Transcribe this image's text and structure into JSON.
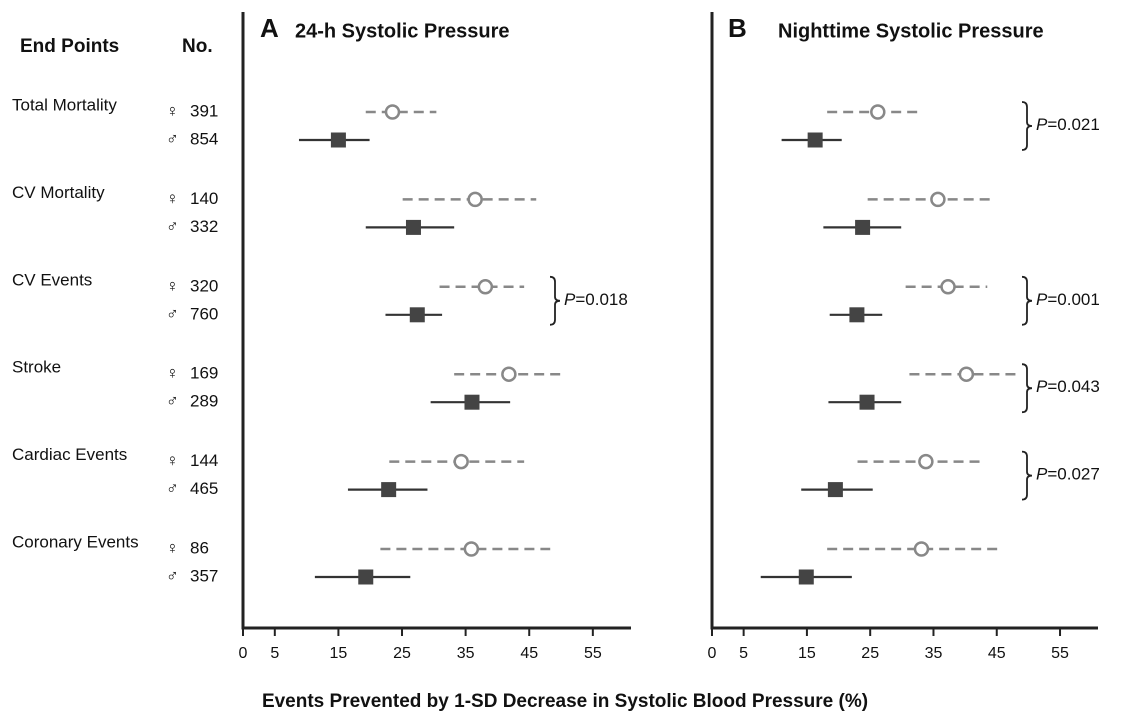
{
  "header": {
    "end_points": "End Points",
    "no": "No.",
    "female_symbol": "♀",
    "male_symbol": "♂"
  },
  "rows": [
    {
      "name": "Total Mortality",
      "female_n": 391,
      "male_n": 854
    },
    {
      "name": "CV Mortality",
      "female_n": 140,
      "male_n": 332
    },
    {
      "name": "CV Events",
      "female_n": 320,
      "male_n": 760
    },
    {
      "name": "Stroke",
      "female_n": 169,
      "male_n": 289
    },
    {
      "name": "Cardiac Events",
      "female_n": 144,
      "male_n": 465
    },
    {
      "name": "Coronary Events",
      "female_n": 86,
      "male_n": 357
    }
  ],
  "x_label": "Events Prevented by 1-SD Decrease in Systolic Blood Pressure (%)",
  "chart_data": [
    {
      "type": "forest",
      "panel": "A",
      "title": "24-h Systolic Pressure",
      "xlim": [
        0,
        61
      ],
      "xticks": [
        0,
        5,
        15,
        25,
        35,
        45,
        55
      ],
      "female": {
        "color": "#888888",
        "values": [
          23.5,
          36.5,
          38.1,
          41.8,
          34.3,
          35.9
        ],
        "lower": [
          19.3,
          25.1,
          30.9,
          33.2,
          23.0,
          21.6
        ],
        "upper": [
          30.4,
          46.1,
          44.2,
          50.0,
          44.2,
          48.3
        ]
      },
      "male": {
        "color": "#444444",
        "values": [
          15.0,
          26.8,
          27.4,
          36.0,
          22.9,
          19.3
        ],
        "lower": [
          8.8,
          19.3,
          22.4,
          29.5,
          16.5,
          11.3
        ],
        "upper": [
          19.9,
          33.2,
          31.3,
          42.0,
          29.0,
          26.3
        ]
      },
      "p_labels": [
        null,
        null,
        "P=0.018",
        null,
        null,
        null
      ]
    },
    {
      "type": "forest",
      "panel": "B",
      "title": "Nighttime Systolic Pressure",
      "xlim": [
        0,
        61
      ],
      "xticks": [
        0,
        5,
        15,
        25,
        35,
        45,
        55
      ],
      "female": {
        "color": "#888888",
        "values": [
          26.2,
          35.7,
          37.3,
          40.2,
          33.8,
          33.1
        ],
        "lower": [
          18.2,
          24.6,
          30.6,
          31.2,
          23.0,
          18.2
        ],
        "upper": [
          33.1,
          44.5,
          43.5,
          48.5,
          43.0,
          45.3
        ]
      },
      "male": {
        "color": "#444444",
        "values": [
          16.3,
          23.8,
          22.9,
          24.5,
          19.5,
          14.9
        ],
        "lower": [
          11.0,
          17.6,
          18.6,
          18.4,
          14.1,
          7.7
        ],
        "upper": [
          20.5,
          29.9,
          26.9,
          29.9,
          25.4,
          22.1
        ]
      },
      "p_labels": [
        "P=0.021",
        null,
        "P=0.001",
        "P=0.043",
        "P=0.027",
        null
      ]
    }
  ]
}
